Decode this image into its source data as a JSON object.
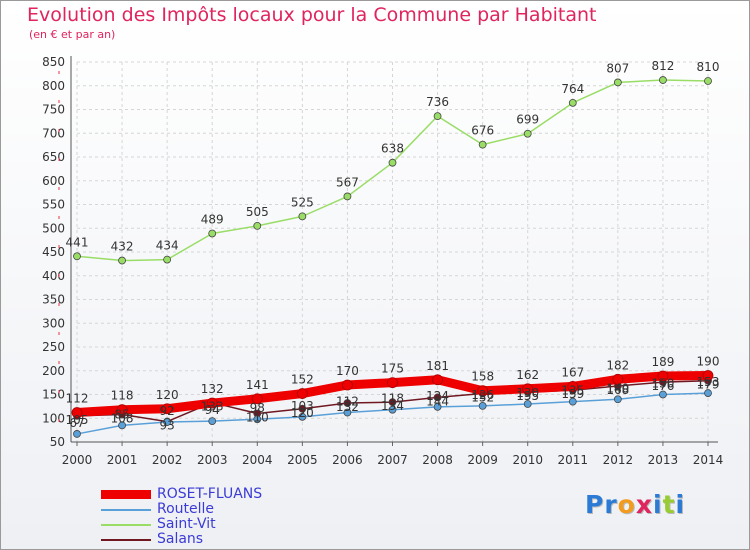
{
  "title": "Evolution des Impôts locaux pour la Commune par Habitant",
  "subtitle": "(en € et par an)",
  "logo_text": "Proxiti",
  "chart_data": {
    "type": "line",
    "title": "Evolution des Impôts locaux pour la Commune par Habitant",
    "subtitle": "(en € et par an)",
    "xlabel": "",
    "ylabel": "",
    "x": [
      2000,
      2001,
      2002,
      2003,
      2004,
      2005,
      2006,
      2007,
      2008,
      2009,
      2010,
      2011,
      2012,
      2013,
      2014
    ],
    "ylim": [
      50,
      850
    ],
    "yticks": [
      50,
      100,
      150,
      200,
      250,
      300,
      350,
      400,
      450,
      500,
      550,
      600,
      650,
      700,
      750,
      800,
      850
    ],
    "grid": true,
    "legend_position": "bottom-left",
    "series": [
      {
        "name": "ROSET-FLUANS",
        "color": "#ee0000",
        "values": [
          112,
          118,
          120,
          132,
          141,
          152,
          170,
          175,
          181,
          158,
          162,
          167,
          182,
          189,
          190
        ]
      },
      {
        "name": "Routelle",
        "color": "#5aa0d8",
        "values": [
          67,
          85,
          92,
          94,
          98,
          103,
          112,
          118,
          124,
          126,
          130,
          135,
          140,
          150,
          153
        ]
      },
      {
        "name": "Saint-Vit",
        "color": "#99dd66",
        "values": [
          441,
          432,
          434,
          489,
          505,
          525,
          567,
          638,
          736,
          676,
          699,
          764,
          807,
          812,
          810
        ]
      },
      {
        "name": "Salans",
        "color": "#701822",
        "values": [
          105,
          108,
          93,
          133,
          110,
          120,
          132,
          134,
          144,
          152,
          155,
          159,
          168,
          176,
          179
        ]
      }
    ]
  }
}
